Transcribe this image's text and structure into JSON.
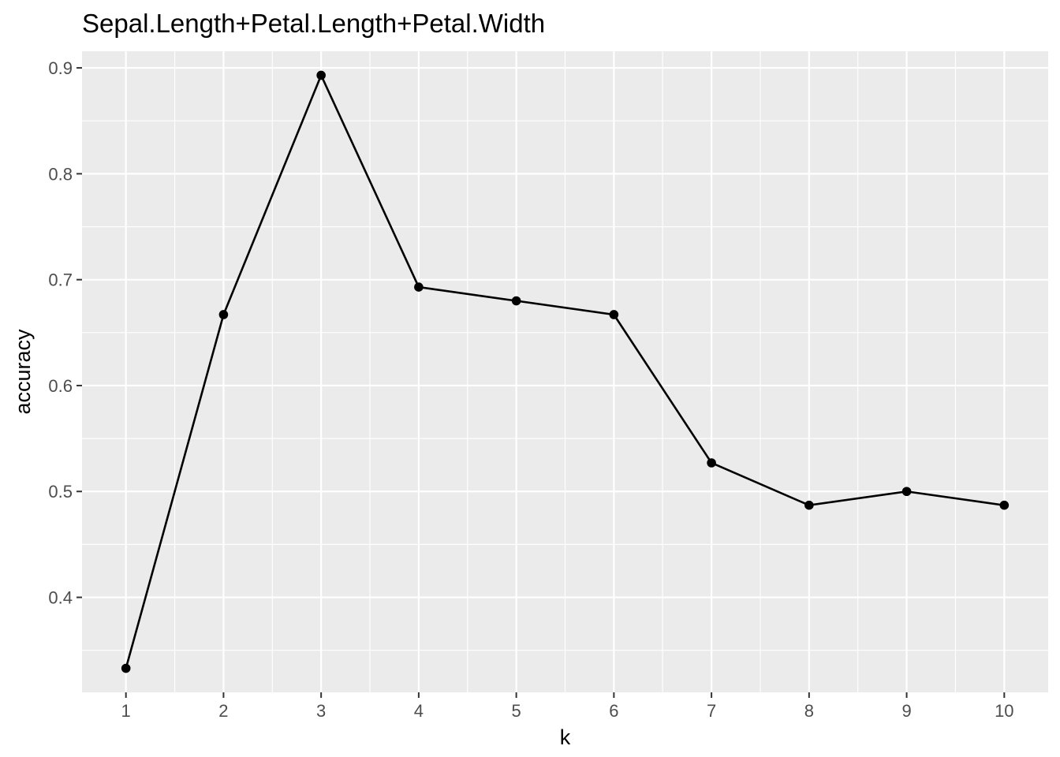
{
  "chart_data": {
    "type": "line",
    "title": "Sepal.Length+Petal.Length+Petal.Width",
    "xlabel": "k",
    "ylabel": "accuracy",
    "x": [
      1,
      2,
      3,
      4,
      5,
      6,
      7,
      8,
      9,
      10
    ],
    "series": [
      {
        "values": [
          0.333,
          0.667,
          0.893,
          0.693,
          0.68,
          0.667,
          0.527,
          0.487,
          0.5,
          0.487
        ]
      }
    ],
    "xlim": [
      0.55,
      10.45
    ],
    "ylim": [
      0.3103,
      0.9157
    ],
    "x_ticks": [
      1,
      2,
      3,
      4,
      5,
      6,
      7,
      8,
      9,
      10
    ],
    "x_tick_labels": [
      "1",
      "2",
      "3",
      "4",
      "5",
      "6",
      "7",
      "8",
      "9",
      "10"
    ],
    "y_ticks": [
      0.4,
      0.5,
      0.6,
      0.7,
      0.8,
      0.9
    ],
    "y_tick_labels": [
      "0.4",
      "0.5",
      "0.6",
      "0.7",
      "0.8",
      "0.9"
    ],
    "grid": true,
    "legend": "none",
    "colors": {
      "panel": "#ebebeb",
      "grid": "#ffffff",
      "line": "#000000",
      "point": "#000000",
      "tick_text": "#4d4d4d",
      "tick_mark": "#333333"
    }
  }
}
